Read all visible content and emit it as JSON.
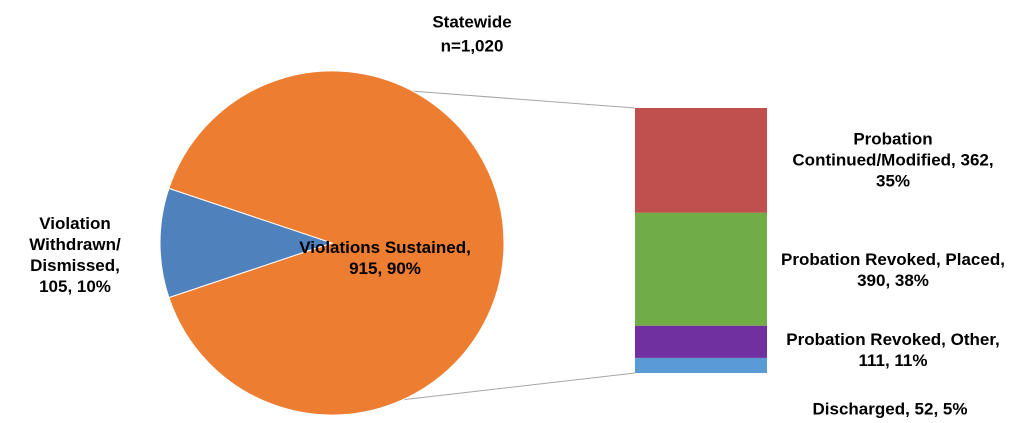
{
  "chart_data": {
    "type": "pie-of-bar",
    "title": "Statewide",
    "subtitle": "n=1,020",
    "pie": {
      "values": [
        105,
        915
      ],
      "value_labels": [
        "Violation Withdrawn/ Dismissed, 105, 10%",
        "Violations Sustained, 915, 90%"
      ],
      "colors": [
        "#4f81bd",
        "#ed7d31"
      ]
    },
    "bar": {
      "values": [
        362,
        390,
        111,
        52
      ],
      "value_labels": [
        "Probation Continued/Modified, 362, 35%",
        "Probation Revoked, Placed, 390, 38%",
        "Probation Revoked, Other, 111, 11%",
        "Discharged, 52, 5%"
      ],
      "colors": [
        "#c0504d",
        "#70ad47",
        "#7030a0",
        "#5b9bd5"
      ]
    }
  }
}
